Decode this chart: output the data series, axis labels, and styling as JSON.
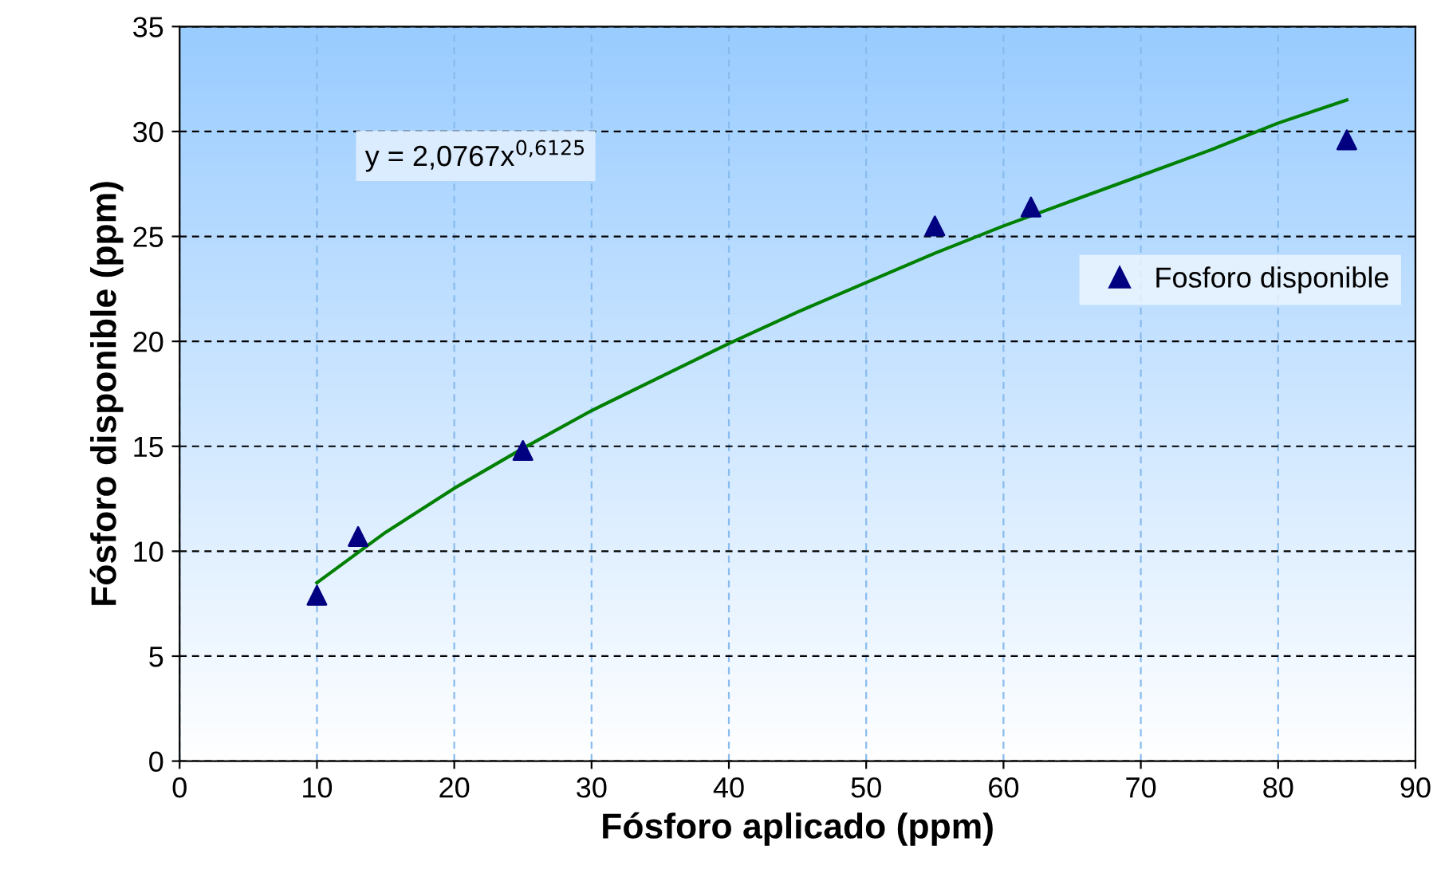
{
  "chart_data": {
    "type": "scatter",
    "xlabel": "Fósforo aplicado (ppm)",
    "ylabel": "Fósforo disponible (ppm)",
    "xlim": [
      0,
      90
    ],
    "xticks": [
      0,
      10,
      20,
      30,
      40,
      50,
      60,
      70,
      80,
      90
    ],
    "ylim": [
      0,
      35
    ],
    "yticks": [
      0,
      5,
      10,
      15,
      20,
      25,
      30,
      35
    ],
    "grid": true,
    "legend": "right",
    "annotations": [
      "y = 2,0767x$^{0,6125}$"
    ],
    "series": [
      {
        "name": "Fosforo disponible",
        "marker": "triangle",
        "color": "#000080",
        "x": [
          10,
          13,
          25,
          55,
          62,
          85
        ],
        "values": [
          7.9,
          10.7,
          14.8,
          25.5,
          26.4,
          29.6
        ]
      },
      {
        "type": "line",
        "marker": "none",
        "color": "#008000",
        "line_style": "solid",
        "x": [
          10,
          15,
          20,
          25,
          30,
          35,
          40,
          45,
          50,
          55,
          60,
          65,
          70,
          75,
          80,
          85
        ],
        "values": [
          8.5,
          10.9,
          13.0,
          14.9,
          16.7,
          18.3,
          19.9,
          21.4,
          22.8,
          24.2,
          25.5,
          26.7,
          27.9,
          29.1,
          30.4,
          31.5
        ]
      }
    ]
  }
}
